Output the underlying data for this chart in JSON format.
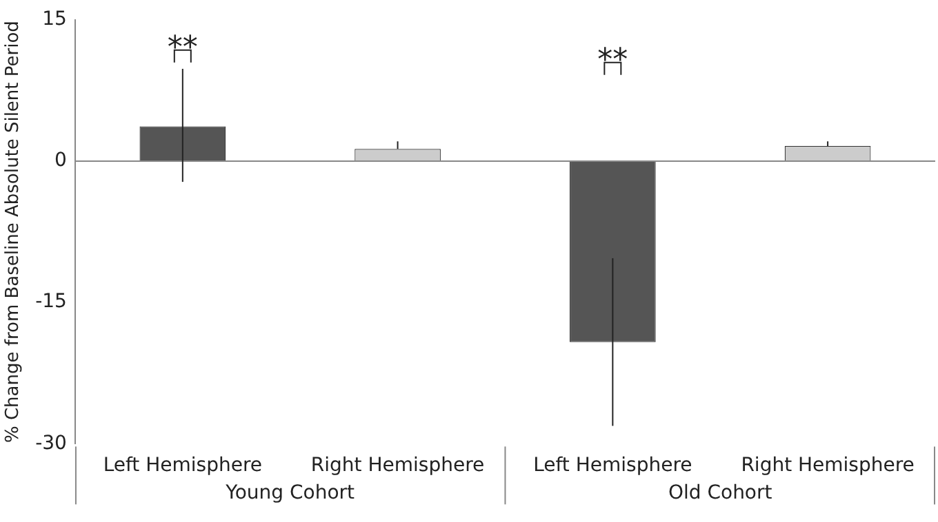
{
  "chart_data": {
    "type": "bar",
    "ylabel": "% Change from Baseline Absolute Silent Period",
    "categories": [
      "Left Hemisphere",
      "Right Hemisphere",
      "Left Hemisphere",
      "Right Hemisphere"
    ],
    "values": [
      3.7,
      1.3,
      -19.2,
      1.6
    ],
    "colors": [
      "#555555",
      "#cccccc",
      "#555555",
      "#cccccc"
    ],
    "errors": [
      [
        -2.2,
        9.8
      ],
      [
        1.3,
        2.1
      ],
      [
        -28.1,
        -10.3
      ],
      [
        1.6,
        2.1
      ]
    ],
    "ylim": [
      -30,
      15
    ],
    "yticks": [
      -30,
      -15,
      0,
      15
    ],
    "legend": false,
    "annotations": [
      "**",
      "**",
      "Young Cohort",
      "Old Cohort"
    ]
  }
}
